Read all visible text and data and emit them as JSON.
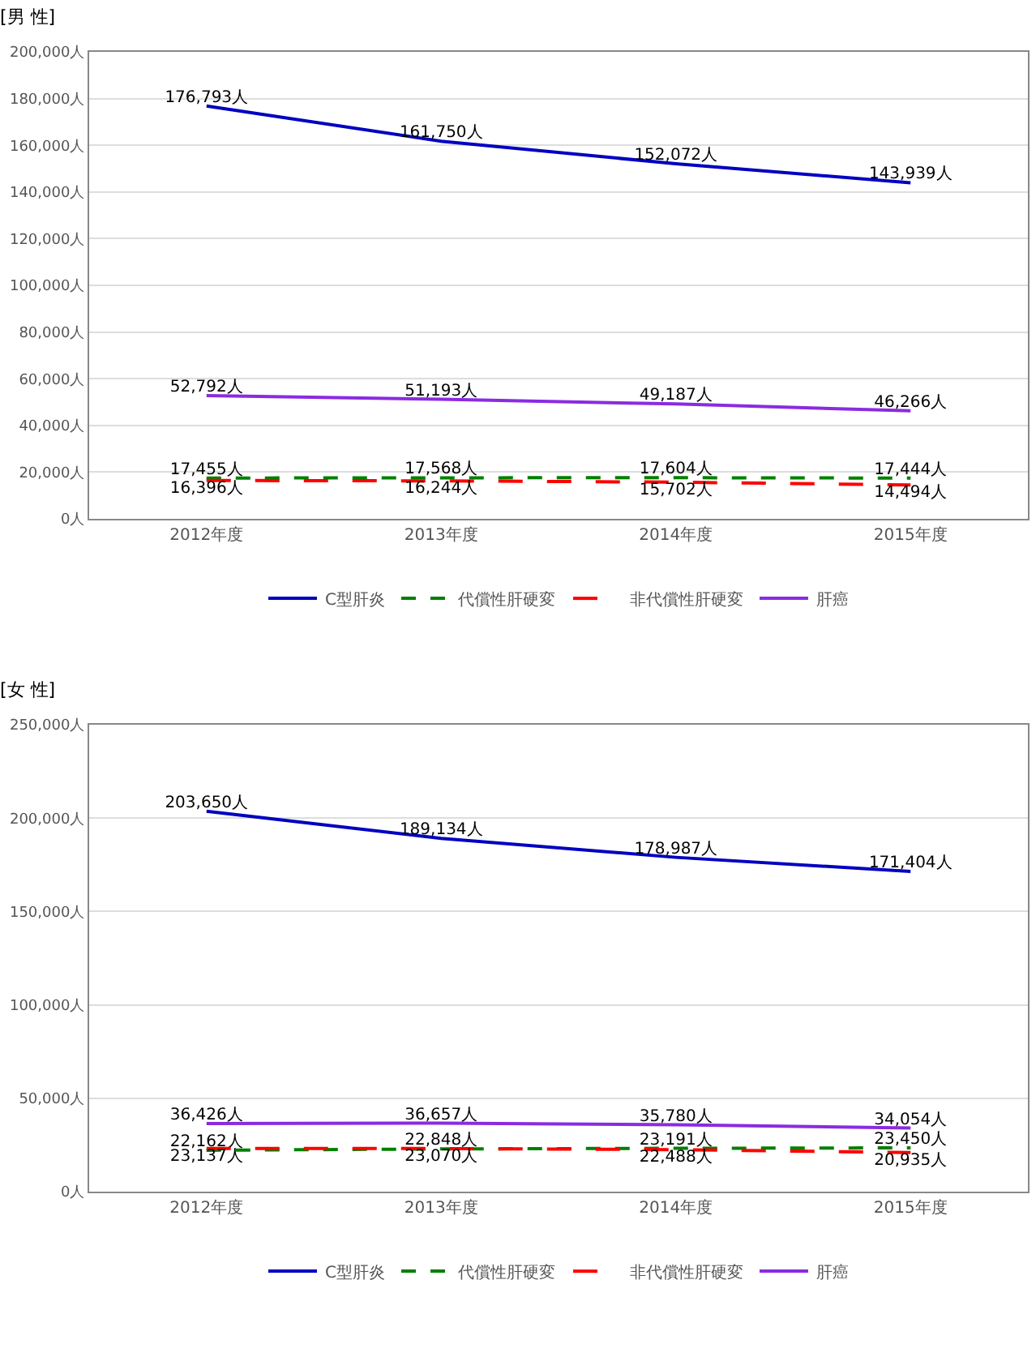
{
  "chart_data": [
    {
      "type": "line",
      "title": "[男 性]",
      "categories": [
        "2012年度",
        "2013年度",
        "2014年度",
        "2015年度"
      ],
      "ylim": [
        0,
        200000
      ],
      "yticks": [
        {
          "value": 0,
          "label": "0人"
        },
        {
          "value": 20000,
          "label": "20,000人"
        },
        {
          "value": 40000,
          "label": "40,000人"
        },
        {
          "value": 60000,
          "label": "60,000人"
        },
        {
          "value": 80000,
          "label": "80,000人"
        },
        {
          "value": 100000,
          "label": "100,000人"
        },
        {
          "value": 120000,
          "label": "120,000人"
        },
        {
          "value": 140000,
          "label": "140,000人"
        },
        {
          "value": 160000,
          "label": "160,000人"
        },
        {
          "value": 180000,
          "label": "180,000人"
        },
        {
          "value": 200000,
          "label": "200,000人"
        }
      ],
      "grid": "y",
      "legend": "bottom",
      "marker": "none",
      "series": [
        {
          "name": "C型肝炎",
          "color": "#0000c0",
          "line_style": "solid",
          "values": [
            176793,
            161750,
            152072,
            143939
          ],
          "value_labels": [
            "176,793人",
            "161,750人",
            "152,072人",
            "143,939人"
          ]
        },
        {
          "name": "代償性肝硬変",
          "color": "#008000",
          "line_style": "dashed",
          "values": [
            17455,
            17568,
            17604,
            17444
          ],
          "value_labels": [
            "17,455人",
            "17,568人",
            "17,604人",
            "17,444人"
          ]
        },
        {
          "name": "非代償性肝硬変",
          "color": "#ff0000",
          "line_style": "dashed",
          "values": [
            16396,
            16244,
            15702,
            14494
          ],
          "value_labels": [
            "16,396人",
            "16,244人",
            "15,702人",
            "14,494人"
          ]
        },
        {
          "name": "肝癌",
          "color": "#8a2be2",
          "line_style": "solid",
          "values": [
            52792,
            51193,
            49187,
            46266
          ],
          "value_labels": [
            "52,792人",
            "51,193人",
            "49,187人",
            "46,266人"
          ]
        }
      ]
    },
    {
      "type": "line",
      "title": "[女 性]",
      "categories": [
        "2012年度",
        "2013年度",
        "2014年度",
        "2015年度"
      ],
      "ylim": [
        0,
        250000
      ],
      "yticks": [
        {
          "value": 0,
          "label": "0人"
        },
        {
          "value": 50000,
          "label": "50,000人"
        },
        {
          "value": 100000,
          "label": "100,000人"
        },
        {
          "value": 150000,
          "label": "150,000人"
        },
        {
          "value": 200000,
          "label": "200,000人"
        },
        {
          "value": 250000,
          "label": "250,000人"
        }
      ],
      "grid": "y",
      "legend": "bottom",
      "marker": "none",
      "series": [
        {
          "name": "C型肝炎",
          "color": "#0000c0",
          "line_style": "solid",
          "values": [
            203650,
            189134,
            178987,
            171404
          ],
          "value_labels": [
            "203,650人",
            "189,134人",
            "178,987人",
            "171,404人"
          ]
        },
        {
          "name": "代償性肝硬変",
          "color": "#008000",
          "line_style": "dashed",
          "values": [
            22162,
            22848,
            23191,
            23450
          ],
          "value_labels": [
            "22,162人",
            "22,848人",
            "23,191人",
            "23,450人"
          ]
        },
        {
          "name": "非代償性肝硬変",
          "color": "#ff0000",
          "line_style": "dashed",
          "values": [
            23137,
            23070,
            22488,
            20935
          ],
          "value_labels": [
            "23,137人",
            "23,070人",
            "22,488人",
            "20,935人"
          ]
        },
        {
          "name": "肝癌",
          "color": "#8a2be2",
          "line_style": "solid",
          "values": [
            36426,
            36657,
            35780,
            34054
          ],
          "value_labels": [
            "36,426人",
            "36,657人",
            "35,780人",
            "34,054人"
          ]
        }
      ]
    }
  ]
}
